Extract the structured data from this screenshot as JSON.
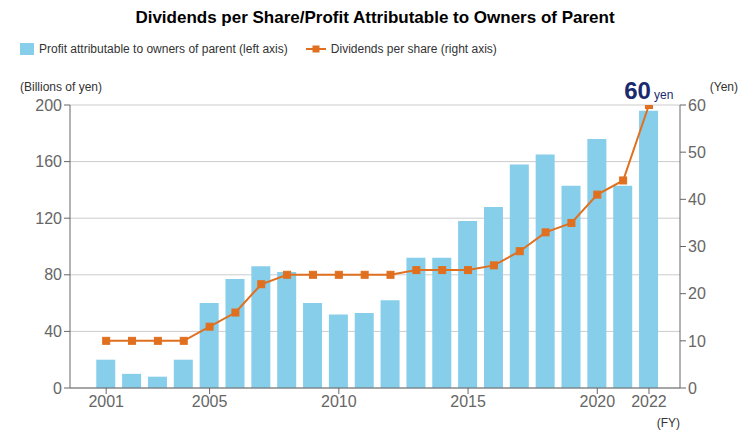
{
  "chart_data": {
    "type": "bar",
    "title": "Dividends per Share/Profit Attributable to Owners of Parent",
    "x": [
      2001,
      2002,
      2003,
      2004,
      2005,
      2006,
      2007,
      2008,
      2009,
      2010,
      2011,
      2012,
      2013,
      2014,
      2015,
      2016,
      2017,
      2018,
      2019,
      2020,
      2021,
      2022
    ],
    "xlim": [
      1999.6,
      2023.2
    ],
    "xticks": [
      2001,
      2005,
      2010,
      2015,
      2020,
      2022
    ],
    "xlabel": "(FY)",
    "ylabel": "(Billions of yen)",
    "ylim": [
      0,
      200
    ],
    "yticks": [
      0,
      40,
      80,
      120,
      160,
      200
    ],
    "y2label": "(Yen)",
    "y2lim": [
      0,
      60
    ],
    "y2ticks": [
      0,
      10,
      20,
      30,
      40,
      50,
      60
    ],
    "grid": true,
    "legend": "upper left",
    "series": [
      {
        "name": "Profit attributable to owners of parent (left axis)",
        "type": "bar",
        "color": "#87CEEB",
        "values": [
          20,
          10,
          8,
          20,
          60,
          77,
          86,
          82,
          60,
          52,
          53,
          62,
          92,
          92,
          118,
          128,
          158,
          165,
          143,
          176,
          143,
          196
        ]
      },
      {
        "name": "Dividends per share (right axis)",
        "type": "line",
        "axis": "y2",
        "color": "#E07020",
        "marker": "square",
        "values": [
          10,
          10,
          10,
          10,
          13,
          16,
          22,
          24,
          24,
          24,
          24,
          24,
          25,
          25,
          25,
          26,
          29,
          33,
          35,
          41,
          44,
          60
        ]
      }
    ],
    "annotations": [
      {
        "text": "60",
        "color": "#1a2a6e"
      },
      {
        "text": "yen",
        "color": "#1a2a6e"
      }
    ]
  }
}
